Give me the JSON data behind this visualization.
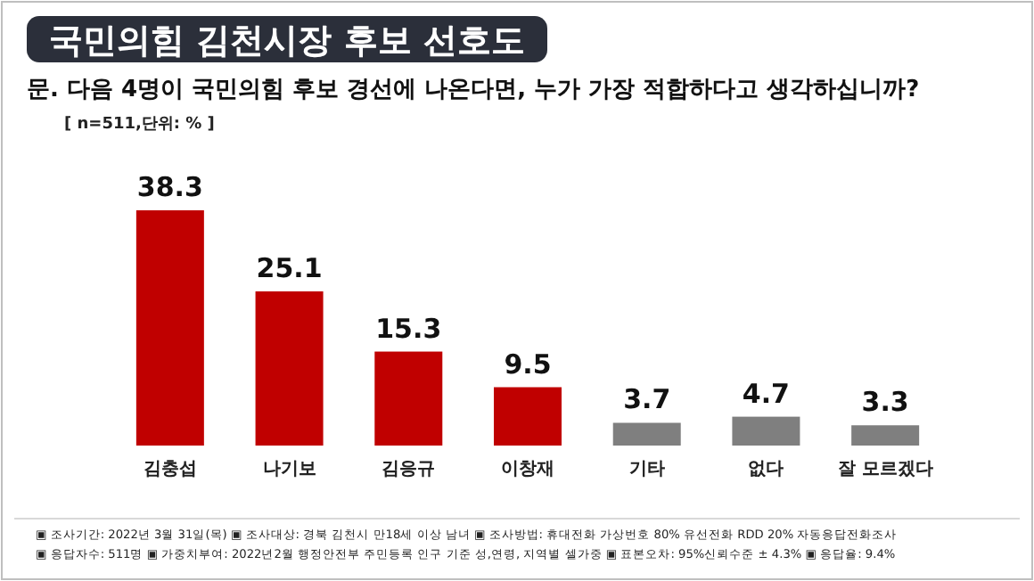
{
  "chart_data": {
    "type": "bar",
    "title": "국민의힘 김천시장 후보 선호도",
    "subtitle": "문. 다음 4명이 국민의힘 후보 경선에 나온다면, 누가 가장 적합하다고 생각하십니까?",
    "categories": [
      "김충섭",
      "나기보",
      "김응규",
      "이창재",
      "기타",
      "없다",
      "잘 모르겠다"
    ],
    "values": [
      38.3,
      25.1,
      15.3,
      9.5,
      3.7,
      4.7,
      3.3
    ],
    "colors": [
      "#c00000",
      "#c00000",
      "#c00000",
      "#c00000",
      "#7f7f7f",
      "#7f7f7f",
      "#7f7f7f"
    ],
    "data_labels": true,
    "annotations": [
      "[ n=511,단위: % ]",
      "▣ 조사기간: 2022년 3월 31일(목)   ▣ 조사대상: 경북 김천시 만18세 이상 남녀   ▣ 조사방법: 휴대전화 가상번호 80% 유선전화 RDD 20% 자동응답전화조사",
      "▣ 응답자수: 511명   ▣ 가중치부여: 2022년2월 행정안전부 주민등록 인구 기준 성,연령, 지역별 셀가중   ▣ 표본오차: 95%신뢰수준 ± 4.3%   ▣ 응답율: 9.4%"
    ]
  }
}
